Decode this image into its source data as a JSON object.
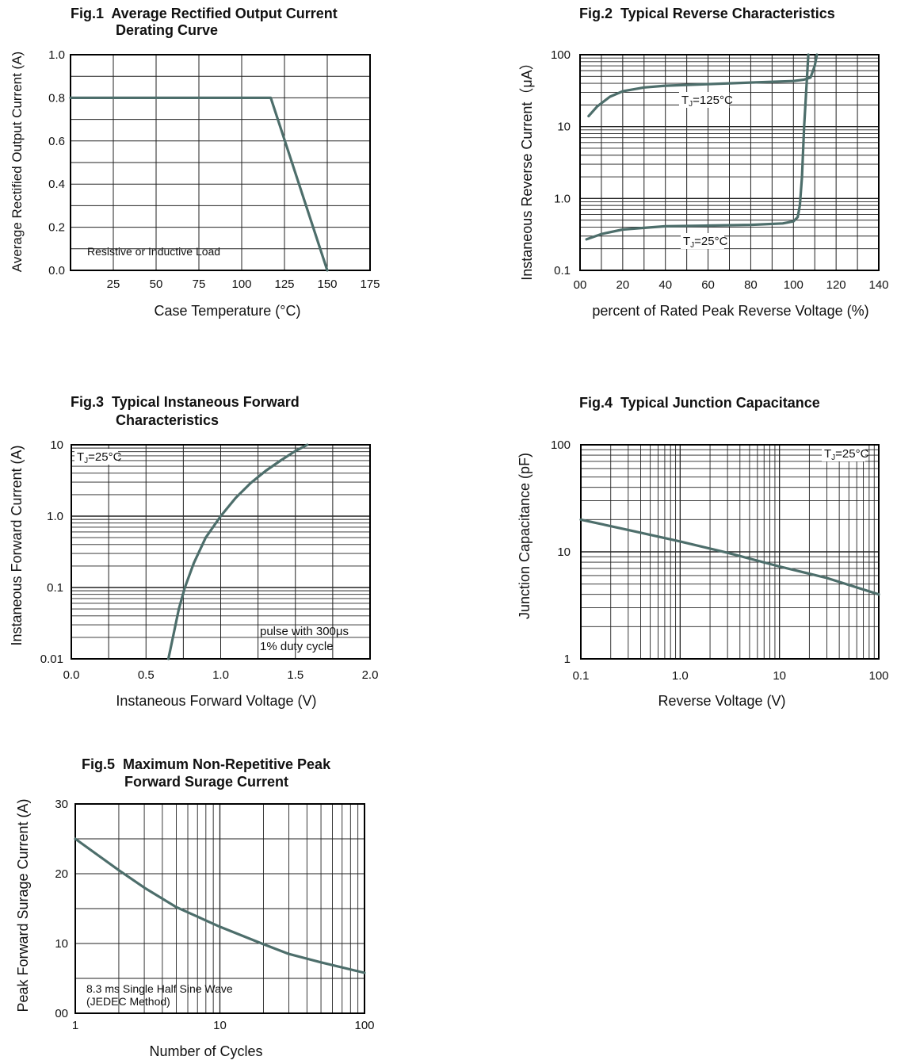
{
  "chart_data": [
    {
      "id": "fig1",
      "type": "line",
      "title_lines": [
        "Fig.1  Average Rectified Output Current",
        "Derating Curve"
      ],
      "xlabel": "Case Temperature (°C)",
      "ylabel": "Average Rectified Output Current (A)",
      "xlim": [
        0,
        175
      ],
      "ylim": [
        0,
        1.0
      ],
      "xscale": "linear",
      "yscale": "linear",
      "xticks": [
        "25",
        "50",
        "75",
        "100",
        "125",
        "150",
        "175"
      ],
      "yticks": [
        "0.0",
        "0.2",
        "0.4",
        "0.6",
        "0.8",
        "1.0"
      ],
      "grid": true,
      "series": [
        {
          "x": [
            0,
            117,
            150
          ],
          "y": [
            0.8,
            0.8,
            0.0
          ]
        }
      ],
      "annotations": [
        "Resistive or Inductive Load"
      ]
    },
    {
      "id": "fig2",
      "type": "line",
      "title_lines": [
        "Fig.2  Typical Reverse Characteristics"
      ],
      "xlabel": "percent of Rated  Peak Reverse Voltage (%)",
      "ylabel": "Instaneous Reverse Current（μA）",
      "xlim": [
        0,
        140
      ],
      "ylim": [
        0.1,
        100
      ],
      "xscale": "linear",
      "yscale": "log",
      "xticks": [
        "00",
        "20",
        "40",
        "60",
        "80",
        "100",
        "120",
        "140"
      ],
      "yticks": [
        "0.1",
        "1.0",
        "10",
        "100"
      ],
      "grid": true,
      "series": [
        {
          "name": "TJ=125°C",
          "x": [
            4,
            8,
            14,
            20,
            30,
            40,
            60,
            80,
            100,
            105,
            108,
            110,
            111
          ],
          "y": [
            14,
            19,
            26,
            31,
            35,
            37,
            39,
            41,
            43,
            45,
            48,
            70,
            100
          ]
        },
        {
          "name": "TJ=25°C",
          "x": [
            3,
            10,
            20,
            30,
            40,
            60,
            80,
            95,
            100,
            102,
            103,
            104,
            105,
            107
          ],
          "y": [
            0.27,
            0.32,
            0.37,
            0.39,
            0.41,
            0.42,
            0.43,
            0.45,
            0.48,
            0.55,
            0.8,
            2,
            10,
            100
          ]
        }
      ],
      "series_labels": [
        {
          "main": "T",
          "sub": "J",
          "rest": "=125°C"
        },
        {
          "main": "T",
          "sub": "J",
          "rest": "=25°C"
        }
      ]
    },
    {
      "id": "fig3",
      "type": "line",
      "title_lines": [
        "Fig.3  Typical Instaneous Forward",
        "Characteristics"
      ],
      "xlabel": "Instaneous Forward Voltage (V)",
      "ylabel": "Instaneous Forward Current (A)",
      "xlim": [
        0,
        2.0
      ],
      "ylim": [
        0.01,
        10
      ],
      "xscale": "linear",
      "yscale": "log",
      "xticks": [
        "0.0",
        "0.5",
        "1.0",
        "1.5",
        "2.0"
      ],
      "yticks": [
        "0.01",
        "0.1",
        "1.0",
        "10"
      ],
      "grid": true,
      "series": [
        {
          "x": [
            0.65,
            0.68,
            0.72,
            0.76,
            0.82,
            0.9,
            1.0,
            1.1,
            1.2,
            1.3,
            1.4,
            1.5,
            1.58
          ],
          "y": [
            0.01,
            0.02,
            0.05,
            0.1,
            0.22,
            0.5,
            1.0,
            1.8,
            2.9,
            4.3,
            6.0,
            8.2,
            10
          ]
        }
      ],
      "condition_label": {
        "main": "T",
        "sub": "J",
        "rest": "=25°C"
      },
      "annotations": [
        "pulse with 300μs",
        "1% duty cycle"
      ]
    },
    {
      "id": "fig4",
      "type": "line",
      "title_lines": [
        "Fig.4  Typical Junction Capacitance"
      ],
      "xlabel": "Reverse  Voltage (V)",
      "ylabel": "Junction Capacitance (pF)",
      "xlim": [
        0.1,
        100
      ],
      "ylim": [
        1,
        100
      ],
      "xscale": "log",
      "yscale": "log",
      "xticks": [
        "0.1",
        "1.0",
        "10",
        "100"
      ],
      "yticks": [
        "1",
        "10",
        "100"
      ],
      "grid": true,
      "series": [
        {
          "x": [
            0.1,
            0.3,
            1,
            3,
            10,
            30,
            100
          ],
          "y": [
            20,
            16,
            12.5,
            9.8,
            7.3,
            5.7,
            4.0
          ]
        }
      ],
      "condition_label": {
        "main": "T",
        "sub": "J",
        "rest": "=25°C"
      }
    },
    {
      "id": "fig5",
      "type": "line",
      "title_lines": [
        "Fig.5  Maximum Non-Repetitive Peak",
        "Forward Surage Current"
      ],
      "xlabel": "Number of Cycles",
      "ylabel": "Peak Forward Surage Current (A)",
      "xlim": [
        1,
        100
      ],
      "ylim": [
        0,
        30
      ],
      "xscale": "log",
      "yscale": "linear",
      "xticks": [
        "1",
        "10",
        "100"
      ],
      "yticks": [
        "00",
        "10",
        "20",
        "30"
      ],
      "grid": true,
      "series": [
        {
          "x": [
            1,
            2,
            3,
            5,
            10,
            20,
            30,
            50,
            100
          ],
          "y": [
            25,
            20.5,
            18,
            15.2,
            12.4,
            9.9,
            8.5,
            7.3,
            5.8
          ]
        }
      ],
      "annotations": [
        "8.3 ms Single Half Sine Wave",
        "(JEDEC Method)"
      ]
    }
  ],
  "colors": {
    "curve": "#4d6e6b",
    "grid": "#222222",
    "axis": "#000000"
  }
}
